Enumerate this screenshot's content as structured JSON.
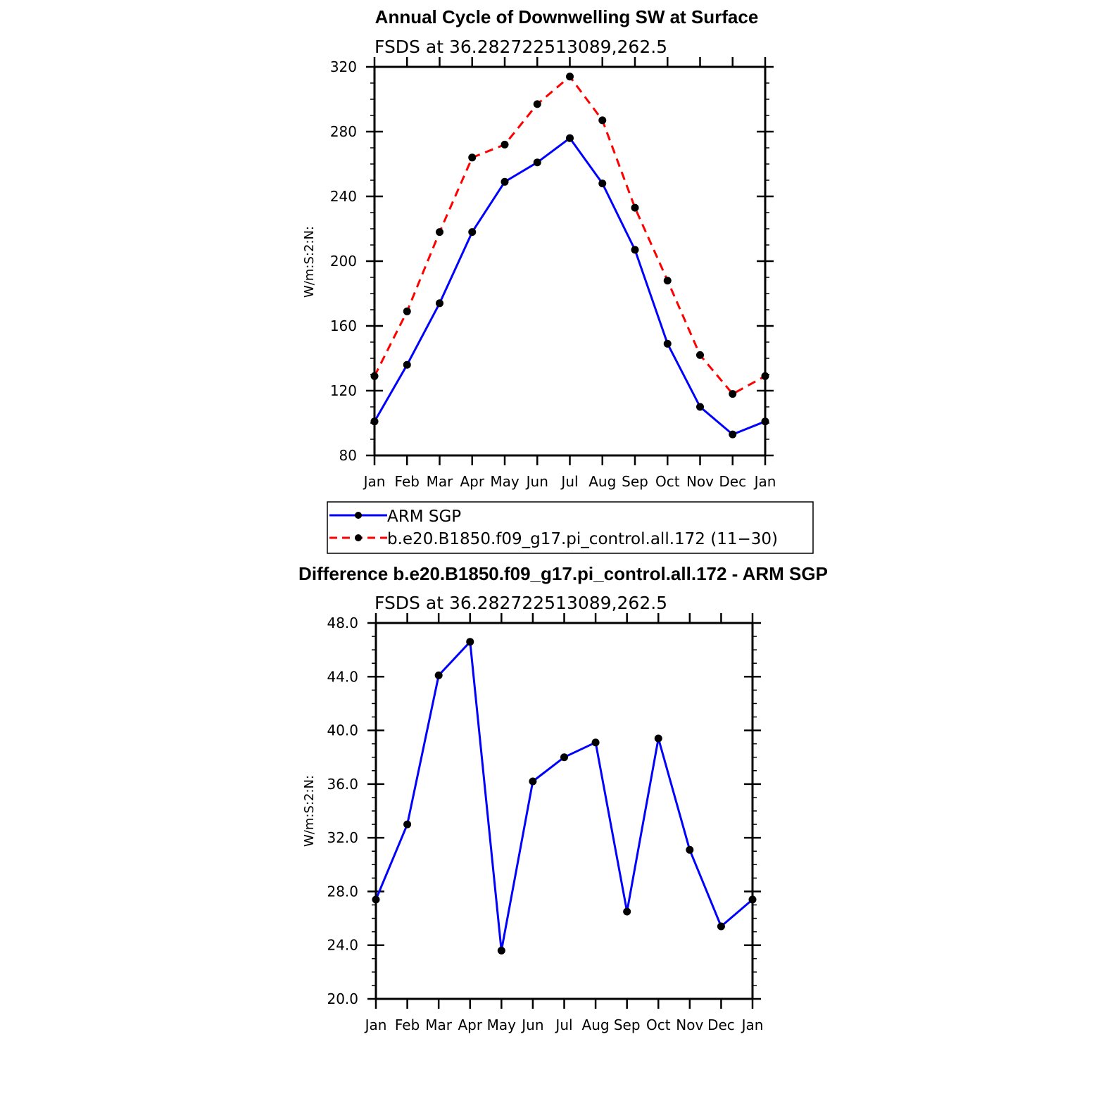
{
  "colors": {
    "obs": "#0000ff",
    "model": "#ff0000",
    "marker": "#000000",
    "axis": "#000000"
  },
  "chart_data": [
    {
      "type": "line",
      "title": "Annual Cycle of Downwelling SW at Surface",
      "subtitle": "FSDS at 36.282722513089,262.5",
      "ylabel": "W/m:S:2:N:",
      "xlabel": "",
      "categories": [
        "Jan",
        "Feb",
        "Mar",
        "Apr",
        "May",
        "Jun",
        "Jul",
        "Aug",
        "Sep",
        "Oct",
        "Nov",
        "Dec",
        "Jan"
      ],
      "ylim": [
        80,
        320
      ],
      "yticks": [
        "80",
        "120",
        "160",
        "200",
        "240",
        "280",
        "320"
      ],
      "series": [
        {
          "name": "ARM SGP",
          "style": "solid",
          "color": "#0000ff",
          "values": [
            101,
            136,
            174,
            218,
            249,
            261,
            276,
            248,
            207,
            149,
            110,
            93,
            101
          ]
        },
        {
          "name": "b.e20.B1850.f09_g17.pi_control.all.172 (11−30)",
          "style": "dashed",
          "color": "#ff0000",
          "values": [
            129,
            169,
            218,
            264,
            272,
            297,
            314,
            287,
            233,
            188,
            142,
            118,
            129
          ]
        }
      ],
      "legend": "below"
    },
    {
      "type": "line",
      "title": "Difference b.e20.B1850.f09_g17.pi_control.all.172 - ARM SGP",
      "subtitle": "FSDS at 36.282722513089,262.5",
      "ylabel": "W/m:S:2:N:",
      "xlabel": "",
      "categories": [
        "Jan",
        "Feb",
        "Mar",
        "Apr",
        "May",
        "Jun",
        "Jul",
        "Aug",
        "Sep",
        "Oct",
        "Nov",
        "Dec",
        "Jan"
      ],
      "ylim": [
        20,
        48
      ],
      "yticks": [
        "20.0",
        "24.0",
        "28.0",
        "32.0",
        "36.0",
        "40.0",
        "44.0",
        "48.0"
      ],
      "series": [
        {
          "name": "",
          "style": "solid",
          "color": "#0000ff",
          "values": [
            27.4,
            33.0,
            44.1,
            46.6,
            23.6,
            36.2,
            38.0,
            39.1,
            26.5,
            39.4,
            31.1,
            25.4,
            27.4
          ]
        }
      ]
    }
  ]
}
